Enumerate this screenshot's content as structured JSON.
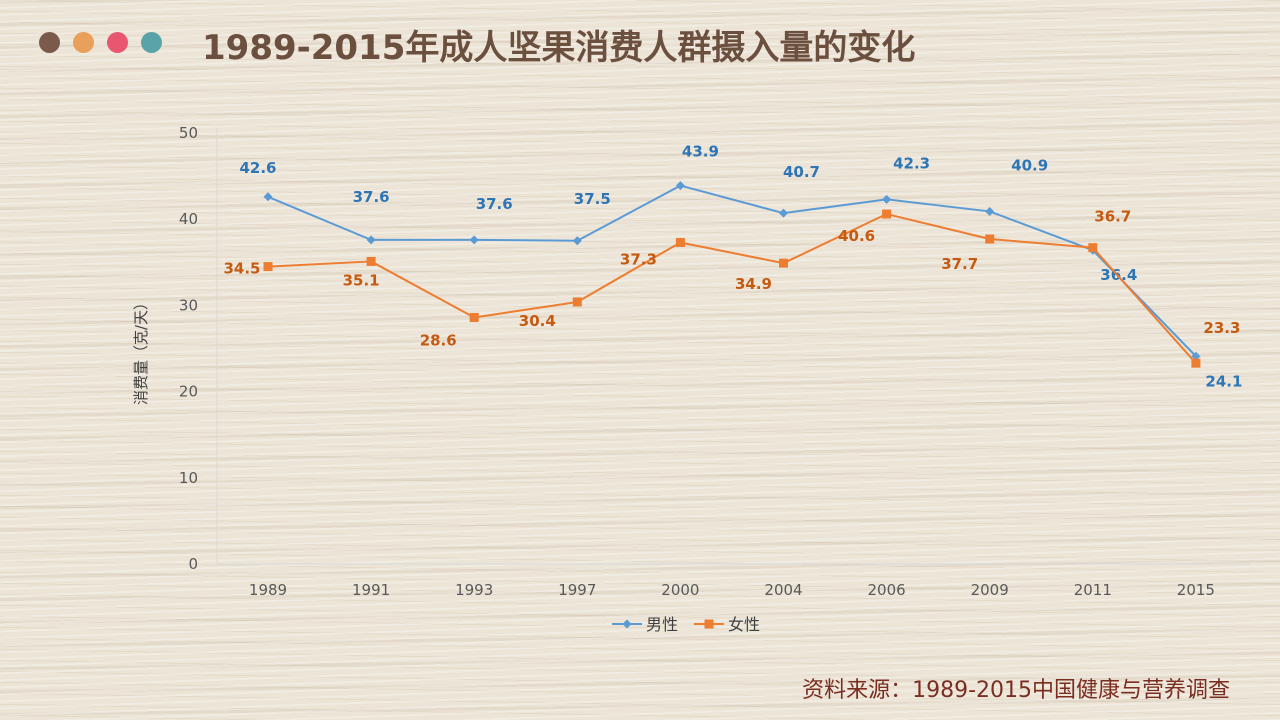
{
  "header": {
    "title": "1989-2015年成人坚果消费人群摄入量的变化",
    "dot_colors": [
      "#7a5a4a",
      "#e8a05a",
      "#e8566f",
      "#5aa3a8"
    ]
  },
  "source": "资料来源：1989-2015中国健康与营养调查",
  "chart_data": {
    "type": "line",
    "title": "1989-2015年成人坚果消费人群摄入量的变化",
    "xlabel": "",
    "ylabel": "消费量（克/天）",
    "ylim": [
      0,
      50
    ],
    "yticks": [
      0,
      10,
      20,
      30,
      40,
      50
    ],
    "categories": [
      "1989",
      "1991",
      "1993",
      "1997",
      "2000",
      "2004",
      "2006",
      "2009",
      "2011",
      "2015"
    ],
    "grid": false,
    "legend_position": "bottom",
    "series": [
      {
        "name": "男性",
        "color": "#5b9bd5",
        "label_color": "#2e75b6",
        "marker": "diamond",
        "values": [
          42.6,
          37.6,
          37.6,
          37.5,
          43.9,
          40.7,
          42.3,
          40.9,
          36.4,
          24.1
        ]
      },
      {
        "name": "女性",
        "color": "#ed7d31",
        "label_color": "#c55a11",
        "marker": "square",
        "values": [
          34.5,
          35.1,
          28.6,
          30.4,
          37.3,
          34.9,
          40.6,
          37.7,
          36.7,
          23.3
        ]
      }
    ]
  }
}
